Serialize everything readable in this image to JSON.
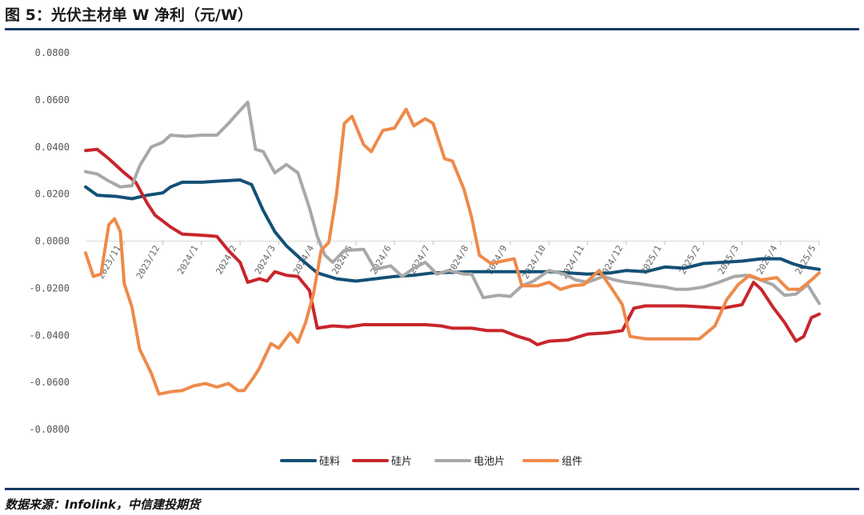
{
  "header": {
    "title": "图 5：光伏主材单 W 净利（元/W）",
    "source": "数据来源：Infolink，中信建投期货"
  },
  "chart_data": {
    "type": "line",
    "y_tick_labels": [
      "0.0800",
      "0.0600",
      "0.0400",
      "0.0200",
      "0.0000",
      "-0.0200",
      "-0.0400",
      "-0.0600",
      "-0.0800"
    ],
    "ylim": [
      -0.08,
      0.08
    ],
    "x_tick_labels": [
      "2023/11",
      "2023/12",
      "2024/1",
      "2024/2",
      "2024/3",
      "2024/4",
      "2024/5",
      "2024/6",
      "2024/7",
      "2024/8",
      "2024/9",
      "2024/10",
      "2024/11",
      "2024/12",
      "2025/1",
      "2025/2",
      "2025/3",
      "2025/4",
      "2025/5"
    ],
    "x_period_count": 19,
    "series": [
      {
        "name": "硅料",
        "color": "#145075",
        "points": [
          [
            0,
            0.023
          ],
          [
            0.3,
            0.0195
          ],
          [
            0.8,
            0.019
          ],
          [
            1.2,
            0.018
          ],
          [
            1.6,
            0.0195
          ],
          [
            2.0,
            0.0205
          ],
          [
            2.2,
            0.023
          ],
          [
            2.5,
            0.025
          ],
          [
            3.0,
            0.025
          ],
          [
            3.5,
            0.0255
          ],
          [
            4.0,
            0.026
          ],
          [
            4.3,
            0.024
          ],
          [
            4.6,
            0.013
          ],
          [
            4.9,
            0.004
          ],
          [
            5.2,
            -0.002
          ],
          [
            5.6,
            -0.008
          ],
          [
            6.0,
            -0.0135
          ],
          [
            6.5,
            -0.016
          ],
          [
            7.0,
            -0.017
          ],
          [
            7.5,
            -0.016
          ],
          [
            8.0,
            -0.015
          ],
          [
            8.5,
            -0.0145
          ],
          [
            9.0,
            -0.0135
          ],
          [
            10.0,
            -0.013
          ],
          [
            11.0,
            -0.013
          ],
          [
            12.0,
            -0.013
          ],
          [
            13.0,
            -0.014
          ],
          [
            13.6,
            -0.0135
          ],
          [
            14.0,
            -0.0125
          ],
          [
            14.5,
            -0.013
          ],
          [
            15.0,
            -0.011
          ],
          [
            15.5,
            -0.0115
          ],
          [
            16.0,
            -0.0095
          ],
          [
            16.5,
            -0.009
          ],
          [
            17.0,
            -0.0085
          ],
          [
            17.5,
            -0.0075
          ],
          [
            18.0,
            -0.0075
          ],
          [
            18.3,
            -0.0095
          ],
          [
            18.6,
            -0.011
          ],
          [
            19.0,
            -0.012
          ]
        ]
      },
      {
        "name": "硅片",
        "color": "#c8252c",
        "points": [
          [
            0,
            0.0385
          ],
          [
            0.3,
            0.039
          ],
          [
            0.6,
            0.035
          ],
          [
            1.0,
            0.029
          ],
          [
            1.3,
            0.025
          ],
          [
            1.6,
            0.016
          ],
          [
            1.8,
            0.011
          ],
          [
            2.2,
            0.006
          ],
          [
            2.5,
            0.003
          ],
          [
            3.0,
            0.0025
          ],
          [
            3.4,
            0.002
          ],
          [
            3.7,
            -0.004
          ],
          [
            4.0,
            -0.009
          ],
          [
            4.2,
            -0.0175
          ],
          [
            4.5,
            -0.016
          ],
          [
            4.7,
            -0.017
          ],
          [
            4.9,
            -0.013
          ],
          [
            5.2,
            -0.0145
          ],
          [
            5.5,
            -0.015
          ],
          [
            5.8,
            -0.021
          ],
          [
            6.0,
            -0.037
          ],
          [
            6.4,
            -0.036
          ],
          [
            6.8,
            -0.0365
          ],
          [
            7.2,
            -0.0355
          ],
          [
            8.0,
            -0.0355
          ],
          [
            8.8,
            -0.0355
          ],
          [
            9.2,
            -0.036
          ],
          [
            9.5,
            -0.037
          ],
          [
            10.0,
            -0.037
          ],
          [
            10.4,
            -0.038
          ],
          [
            10.8,
            -0.038
          ],
          [
            11.2,
            -0.0405
          ],
          [
            11.5,
            -0.042
          ],
          [
            11.7,
            -0.044
          ],
          [
            12.0,
            -0.0425
          ],
          [
            12.5,
            -0.042
          ],
          [
            13.0,
            -0.0395
          ],
          [
            13.5,
            -0.039
          ],
          [
            13.9,
            -0.038
          ],
          [
            14.2,
            -0.0285
          ],
          [
            14.5,
            -0.0275
          ],
          [
            15.0,
            -0.0275
          ],
          [
            15.5,
            -0.0275
          ],
          [
            16.0,
            -0.028
          ],
          [
            16.5,
            -0.0285
          ],
          [
            17.0,
            -0.027
          ],
          [
            17.3,
            -0.0175
          ],
          [
            17.5,
            -0.0205
          ],
          [
            17.8,
            -0.028
          ],
          [
            18.1,
            -0.0345
          ],
          [
            18.4,
            -0.0425
          ],
          [
            18.6,
            -0.0405
          ],
          [
            18.8,
            -0.0325
          ],
          [
            19.0,
            -0.031
          ]
        ]
      },
      {
        "name": "电池片",
        "color": "#a8a8a8",
        "points": [
          [
            0,
            0.0295
          ],
          [
            0.3,
            0.0285
          ],
          [
            0.6,
            0.0255
          ],
          [
            0.9,
            0.023
          ],
          [
            1.2,
            0.0235
          ],
          [
            1.4,
            0.032
          ],
          [
            1.7,
            0.04
          ],
          [
            2.0,
            0.042
          ],
          [
            2.2,
            0.045
          ],
          [
            2.6,
            0.0445
          ],
          [
            3.0,
            0.045
          ],
          [
            3.4,
            0.045
          ],
          [
            3.7,
            0.05
          ],
          [
            4.0,
            0.0555
          ],
          [
            4.2,
            0.059
          ],
          [
            4.4,
            0.039
          ],
          [
            4.6,
            0.038
          ],
          [
            4.9,
            0.029
          ],
          [
            5.2,
            0.0325
          ],
          [
            5.5,
            0.029
          ],
          [
            5.8,
            0.014
          ],
          [
            6.0,
            0.002
          ],
          [
            6.2,
            -0.006
          ],
          [
            6.4,
            -0.009
          ],
          [
            6.7,
            -0.004
          ],
          [
            7.2,
            -0.0035
          ],
          [
            7.5,
            -0.012
          ],
          [
            7.9,
            -0.0105
          ],
          [
            8.2,
            -0.015
          ],
          [
            8.5,
            -0.0115
          ],
          [
            8.8,
            -0.009
          ],
          [
            9.1,
            -0.014
          ],
          [
            9.4,
            -0.0125
          ],
          [
            9.8,
            -0.014
          ],
          [
            10.0,
            -0.014
          ],
          [
            10.3,
            -0.024
          ],
          [
            10.7,
            -0.023
          ],
          [
            11.0,
            -0.0235
          ],
          [
            11.3,
            -0.019
          ],
          [
            11.6,
            -0.017
          ],
          [
            12.0,
            -0.0125
          ],
          [
            12.4,
            -0.014
          ],
          [
            12.7,
            -0.0165
          ],
          [
            13.0,
            -0.0175
          ],
          [
            13.4,
            -0.015
          ],
          [
            13.7,
            -0.0165
          ],
          [
            14.0,
            -0.0175
          ],
          [
            14.3,
            -0.018
          ],
          [
            14.7,
            -0.019
          ],
          [
            15.0,
            -0.0195
          ],
          [
            15.3,
            -0.0205
          ],
          [
            15.6,
            -0.0205
          ],
          [
            16.0,
            -0.0195
          ],
          [
            16.4,
            -0.0175
          ],
          [
            16.8,
            -0.015
          ],
          [
            17.1,
            -0.0145
          ],
          [
            17.4,
            -0.016
          ],
          [
            17.8,
            -0.0185
          ],
          [
            18.1,
            -0.023
          ],
          [
            18.4,
            -0.0225
          ],
          [
            18.7,
            -0.0185
          ],
          [
            19.0,
            -0.0265
          ]
        ]
      },
      {
        "name": "组件",
        "color": "#ee8a4a",
        "points": [
          [
            0,
            -0.005
          ],
          [
            0.2,
            -0.015
          ],
          [
            0.4,
            -0.014
          ],
          [
            0.6,
            0.007
          ],
          [
            0.75,
            0.0095
          ],
          [
            0.9,
            0.004
          ],
          [
            1.0,
            -0.018
          ],
          [
            1.2,
            -0.028
          ],
          [
            1.4,
            -0.046
          ],
          [
            1.7,
            -0.056
          ],
          [
            1.9,
            -0.065
          ],
          [
            2.2,
            -0.064
          ],
          [
            2.5,
            -0.0635
          ],
          [
            2.8,
            -0.0615
          ],
          [
            3.1,
            -0.0605
          ],
          [
            3.4,
            -0.062
          ],
          [
            3.7,
            -0.0605
          ],
          [
            3.95,
            -0.0635
          ],
          [
            4.1,
            -0.0635
          ],
          [
            4.35,
            -0.058
          ],
          [
            4.5,
            -0.054
          ],
          [
            4.8,
            -0.0435
          ],
          [
            5.0,
            -0.0455
          ],
          [
            5.3,
            -0.039
          ],
          [
            5.5,
            -0.043
          ],
          [
            5.7,
            -0.0345
          ],
          [
            5.9,
            -0.0225
          ],
          [
            6.1,
            -0.004
          ],
          [
            6.3,
            -0.0005
          ],
          [
            6.5,
            0.02
          ],
          [
            6.7,
            0.05
          ],
          [
            6.9,
            0.053
          ],
          [
            7.2,
            0.041
          ],
          [
            7.4,
            0.038
          ],
          [
            7.7,
            0.047
          ],
          [
            8.0,
            0.048
          ],
          [
            8.3,
            0.056
          ],
          [
            8.5,
            0.049
          ],
          [
            8.8,
            0.052
          ],
          [
            9.0,
            0.05
          ],
          [
            9.3,
            0.035
          ],
          [
            9.5,
            0.034
          ],
          [
            9.8,
            0.022
          ],
          [
            10.0,
            0.01
          ],
          [
            10.2,
            -0.006
          ],
          [
            10.5,
            -0.0095
          ],
          [
            10.8,
            -0.0085
          ],
          [
            11.1,
            -0.0075
          ],
          [
            11.3,
            -0.019
          ],
          [
            11.7,
            -0.019
          ],
          [
            12.0,
            -0.0175
          ],
          [
            12.3,
            -0.0205
          ],
          [
            12.6,
            -0.019
          ],
          [
            12.9,
            -0.0185
          ],
          [
            13.3,
            -0.0125
          ],
          [
            13.6,
            -0.0195
          ],
          [
            13.9,
            -0.027
          ],
          [
            14.1,
            -0.0405
          ],
          [
            14.5,
            -0.0415
          ],
          [
            15.0,
            -0.0415
          ],
          [
            15.5,
            -0.0415
          ],
          [
            15.9,
            -0.0415
          ],
          [
            16.3,
            -0.036
          ],
          [
            16.6,
            -0.025
          ],
          [
            16.9,
            -0.0185
          ],
          [
            17.2,
            -0.0145
          ],
          [
            17.5,
            -0.0165
          ],
          [
            17.9,
            -0.0155
          ],
          [
            18.2,
            -0.0205
          ],
          [
            18.5,
            -0.0205
          ],
          [
            18.8,
            -0.0165
          ],
          [
            19.0,
            -0.0135
          ]
        ]
      }
    ]
  }
}
